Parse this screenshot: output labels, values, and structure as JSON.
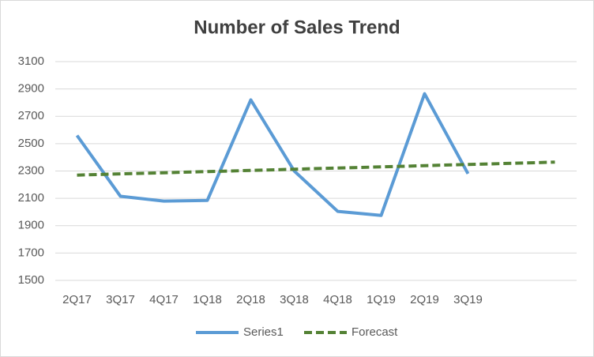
{
  "chart_data": {
    "type": "line",
    "title": "Number of Sales Trend",
    "categories": [
      "2Q17",
      "3Q17",
      "4Q17",
      "1Q18",
      "2Q18",
      "3Q18",
      "4Q18",
      "1Q19",
      "2Q19",
      "3Q19",
      null,
      null
    ],
    "series": [
      {
        "name": "Series1",
        "color": "#5b9bd5",
        "dashed": false,
        "values": [
          2560,
          2115,
          2080,
          2085,
          2820,
          2300,
          2005,
          1975,
          2865,
          2280,
          null,
          null
        ]
      },
      {
        "name": "Forecast",
        "color": "#548235",
        "dashed": true,
        "values": [
          2270,
          2279,
          2287,
          2296,
          2304,
          2313,
          2322,
          2330,
          2339,
          2348,
          2356,
          2365
        ]
      }
    ],
    "ylim": [
      1500,
      3100
    ],
    "yticks": [
      1500,
      1700,
      1900,
      2100,
      2300,
      2500,
      2700,
      2900,
      3100
    ],
    "grid": true,
    "legend": "bottom"
  }
}
